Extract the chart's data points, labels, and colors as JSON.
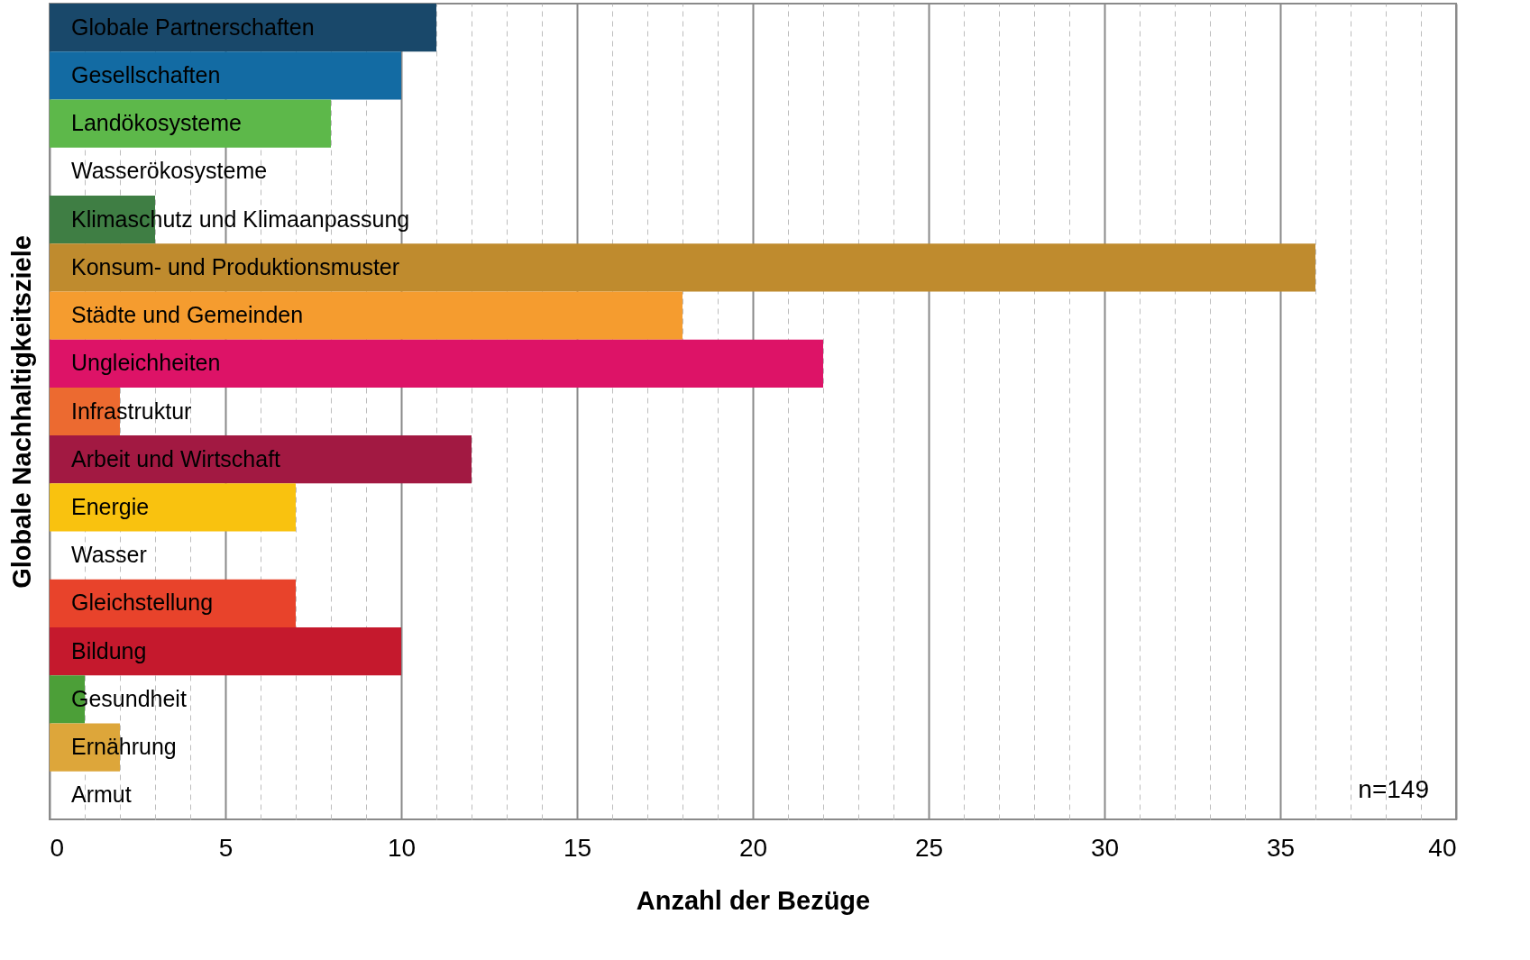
{
  "chart_data": {
    "type": "bar",
    "orientation": "horizontal",
    "xlabel": "Anzahl der Bezüge",
    "ylabel": "Globale Nachhaltigkeitsziele",
    "categories": [
      "Globale Partnerschaften",
      "Gesellschaften",
      "Landökosysteme",
      "Wasserökosysteme",
      "Klimaschutz und Klimaanpassung",
      "Konsum- und Produktionsmuster",
      "Städte und Gemeinden",
      "Ungleichheiten",
      "Infrastruktur",
      "Arbeit und Wirtschaft",
      "Energie",
      "Wasser",
      "Gleichstellung",
      "Bildung",
      "Gesundheit",
      "Ernährung",
      "Armut"
    ],
    "values": [
      11,
      10,
      8,
      0,
      3,
      36,
      18,
      22,
      2,
      12,
      7,
      0,
      7,
      10,
      1,
      2,
      0
    ],
    "colors": [
      "#19486a",
      "#136ba3",
      "#5db84a",
      "#0a97d9",
      "#3f7e44",
      "#bf8b2e",
      "#f59c2f",
      "#dd1367",
      "#ec6a30",
      "#a21942",
      "#f9c20f",
      "#26bde2",
      "#e8432b",
      "#c5192d",
      "#4c9f38",
      "#dda63a",
      "#e5243b"
    ],
    "xlim": [
      0,
      40
    ],
    "xticks": [
      0,
      {
        "value": 1,
        "label": null
      },
      {
        "value": 2,
        "label": null
      },
      {
        "value": 3,
        "label": null
      },
      {
        "value": 4,
        "label": null
      },
      5,
      {
        "value": 6,
        "label": null
      },
      {
        "value": 7,
        "label": null
      },
      {
        "value": 8,
        "label": null
      },
      {
        "value": 9,
        "label": null
      },
      10,
      {
        "value": 11,
        "label": null
      },
      {
        "value": 12,
        "label": null
      },
      {
        "value": 13,
        "label": null
      },
      {
        "value": 14,
        "label": null
      },
      15,
      {
        "value": 16,
        "label": null
      },
      {
        "value": 17,
        "label": null
      },
      {
        "value": 18,
        "label": null
      },
      {
        "value": 19,
        "label": null
      },
      20,
      {
        "value": 21,
        "label": null
      },
      {
        "value": 22,
        "label": null
      },
      {
        "value": 23,
        "label": null
      },
      {
        "value": 24,
        "label": null
      },
      25,
      {
        "value": 26,
        "label": null
      },
      {
        "value": 27,
        "label": null
      },
      {
        "value": 28,
        "label": null
      },
      {
        "value": 29,
        "label": null
      },
      30,
      {
        "value": 31,
        "label": null
      },
      {
        "value": 32,
        "label": null
      },
      {
        "value": 33,
        "label": null
      },
      {
        "value": 34,
        "label": null
      },
      35,
      {
        "value": 36,
        "label": null
      },
      {
        "value": 37,
        "label": null
      },
      {
        "value": 38,
        "label": null
      },
      {
        "value": 39,
        "label": null
      },
      40
    ],
    "grid": "x",
    "legend": false,
    "annotations": [
      "n=149"
    ]
  }
}
